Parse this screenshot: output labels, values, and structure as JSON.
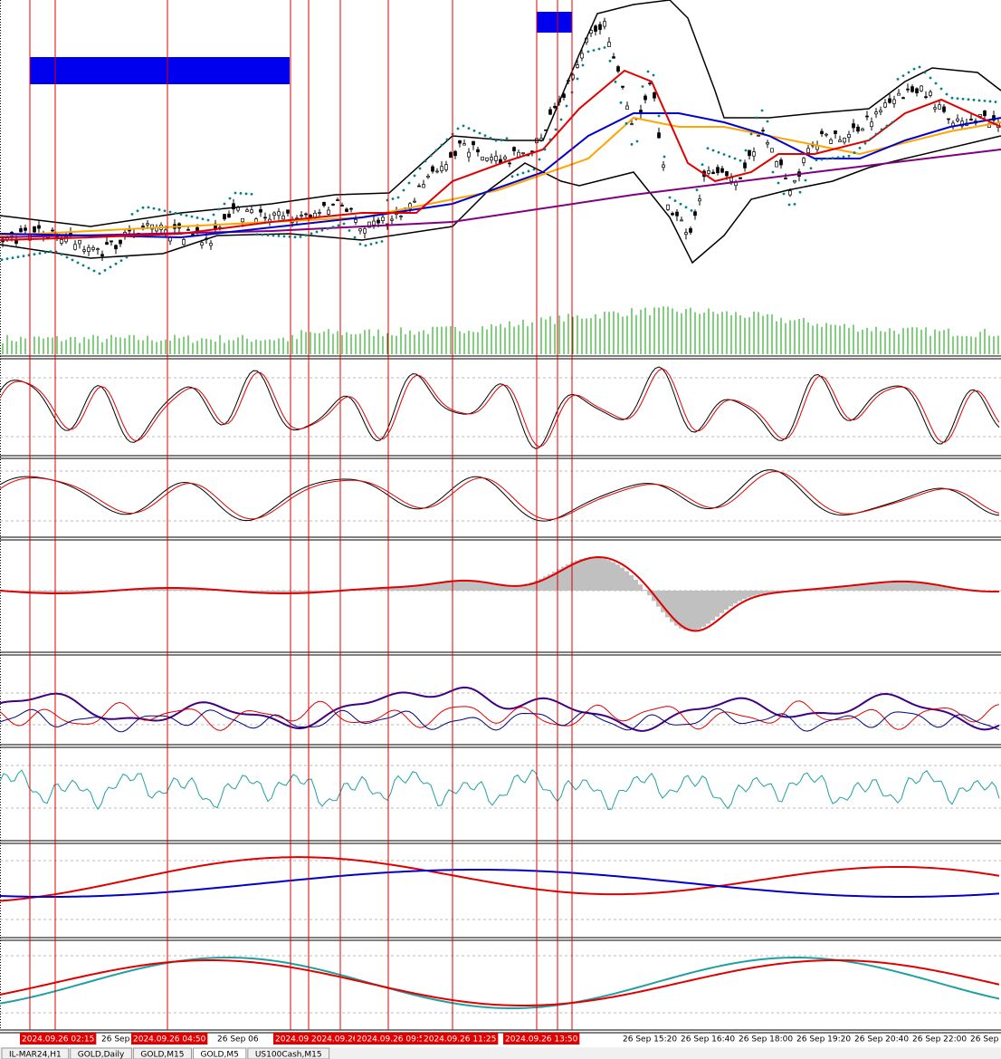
{
  "time_axis": {
    "marker_labels": [
      "2024.09.26 02:15",
      "2024.09.26 04:50",
      "2024.09.26",
      "2024.09.26",
      "2024.09.26 09:5",
      "2024.09.26 11:25",
      "2024.09.26 13:50"
    ],
    "time_labels": [
      "26 Sep",
      "26 Sep 06",
      "26 Sep 15:20",
      "26 Sep 16:40",
      "26 Sep 18:00",
      "26 Sep 19:20",
      "26 Sep 20:40",
      "26 Sep 22:00",
      "26 Sep 2"
    ]
  },
  "tabs": [
    "IL-MAR24,H1",
    "GOLD,Daily",
    "GOLD,M15",
    "GOLD,M5",
    "US100Cash,M15"
  ]
}
